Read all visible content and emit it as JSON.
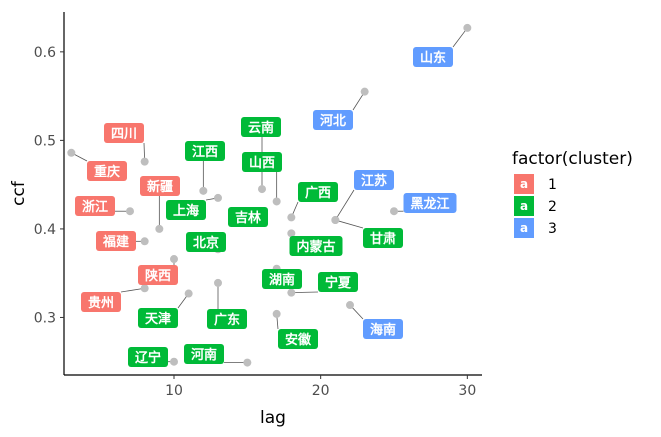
{
  "chart_data": {
    "type": "scatter",
    "xlabel": "lag",
    "ylabel": "ccf",
    "xlim": [
      2.5,
      31
    ],
    "ylim": [
      0.235,
      0.645
    ],
    "xticks": [
      10,
      20,
      30
    ],
    "yticks": [
      0.3,
      0.4,
      0.5,
      0.6
    ],
    "grid": false,
    "legend": {
      "title": "factor(cluster)",
      "position": "right",
      "key_glyph": "a",
      "items": [
        {
          "label": "1",
          "color": "#F8766D"
        },
        {
          "label": "2",
          "color": "#00BA38"
        },
        {
          "label": "3",
          "color": "#619CFF"
        }
      ]
    },
    "point_color": "#BEBEBE",
    "points": [
      {
        "name": "山东",
        "x": 30,
        "y": 0.627,
        "cluster": 3
      },
      {
        "name": "河北",
        "x": 23,
        "y": 0.555,
        "cluster": 3
      },
      {
        "name": "四川",
        "x": 8,
        "y": 0.476,
        "cluster": 1
      },
      {
        "name": "重庆",
        "x": 3,
        "y": 0.486,
        "cluster": 1
      },
      {
        "name": "新疆",
        "x": 9,
        "y": 0.4,
        "cluster": 1
      },
      {
        "name": "浙江",
        "x": 7,
        "y": 0.42,
        "cluster": 1
      },
      {
        "name": "福建",
        "x": 8,
        "y": 0.386,
        "cluster": 1
      },
      {
        "name": "陕西",
        "x": 10,
        "y": 0.366,
        "cluster": 1
      },
      {
        "name": "贵州",
        "x": 8,
        "y": 0.333,
        "cluster": 1
      },
      {
        "name": "江西",
        "x": 12,
        "y": 0.443,
        "cluster": 2
      },
      {
        "name": "云南",
        "x": 16,
        "y": 0.445,
        "cluster": 2
      },
      {
        "name": "山西",
        "x": 17,
        "y": 0.431,
        "cluster": 2
      },
      {
        "name": "广西",
        "x": 18,
        "y": 0.413,
        "cluster": 2
      },
      {
        "name": "上海",
        "x": 13,
        "y": 0.435,
        "cluster": 2
      },
      {
        "name": "吉林",
        "x": 14,
        "y": 0.417,
        "cluster": 2
      },
      {
        "name": "北京",
        "x": 13,
        "y": 0.377,
        "cluster": 2
      },
      {
        "name": "内蒙古",
        "x": 18,
        "y": 0.395,
        "cluster": 2
      },
      {
        "name": "甘肃",
        "x": 21,
        "y": 0.41,
        "cluster": 2
      },
      {
        "name": "湖南",
        "x": 17,
        "y": 0.355,
        "cluster": 2
      },
      {
        "name": "宁夏",
        "x": 18,
        "y": 0.328,
        "cluster": 2
      },
      {
        "name": "天津",
        "x": 11,
        "y": 0.327,
        "cluster": 2
      },
      {
        "name": "广东",
        "x": 13,
        "y": 0.339,
        "cluster": 2
      },
      {
        "name": "安徽",
        "x": 17,
        "y": 0.304,
        "cluster": 2
      },
      {
        "name": "辽宁",
        "x": 10,
        "y": 0.25,
        "cluster": 2
      },
      {
        "name": "河南",
        "x": 15,
        "y": 0.249,
        "cluster": 2
      },
      {
        "name": "江苏",
        "x": 21,
        "y": 0.41,
        "cluster": 3
      },
      {
        "name": "黑龙江",
        "x": 25,
        "y": 0.42,
        "cluster": 3
      },
      {
        "name": "海南",
        "x": 22,
        "y": 0.314,
        "cluster": 3
      }
    ]
  }
}
